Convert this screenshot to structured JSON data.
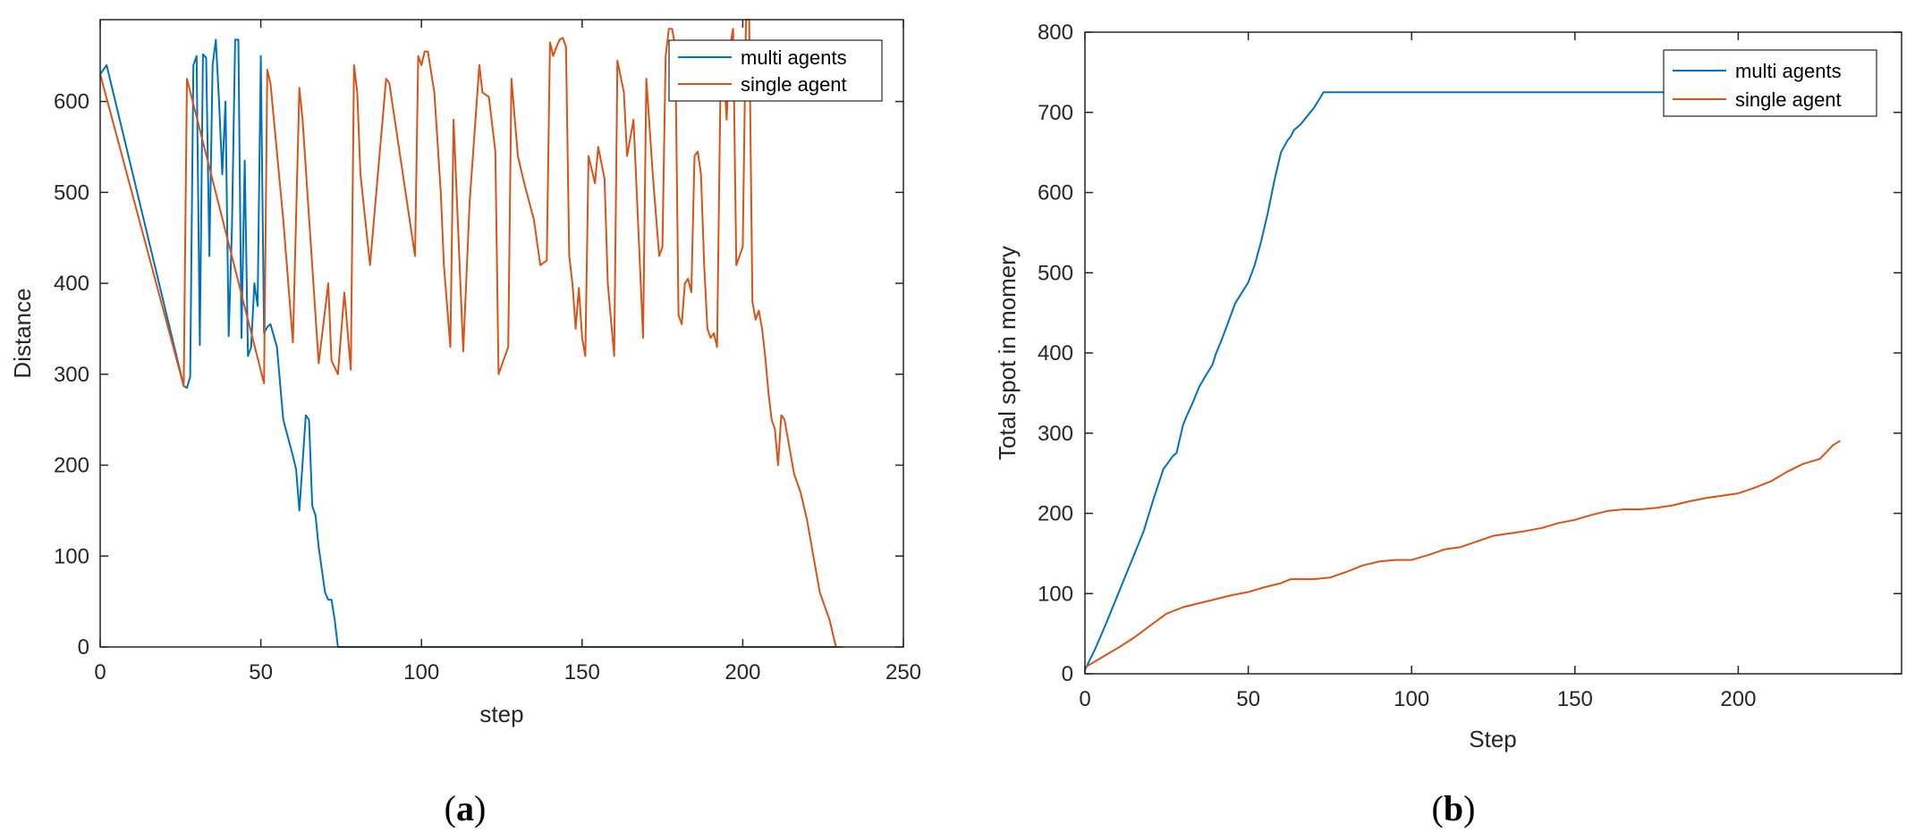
{
  "colors": {
    "multi": "#0072BD",
    "single": "#D95319"
  },
  "chart_data": [
    {
      "type": "line",
      "panel_label": "a",
      "xlabel": "step",
      "ylabel": "Distance",
      "xlim": [
        0,
        250
      ],
      "ylim": [
        0,
        690
      ],
      "xticks": [
        "0",
        "50",
        "100",
        "150",
        "200",
        "250"
      ],
      "yticks": [
        "0",
        "100",
        "200",
        "300",
        "400",
        "500",
        "600"
      ],
      "grid": false,
      "legend": "top-right",
      "series": [
        {
          "name": "multi agents",
          "x": [
            0,
            2,
            26,
            27,
            28,
            29,
            30,
            31,
            32,
            33,
            34,
            35,
            36,
            37,
            38,
            39,
            40,
            41,
            42,
            43,
            44,
            45,
            46,
            47,
            48,
            49,
            50,
            51,
            52,
            53,
            55,
            57,
            60,
            61,
            62,
            64,
            65,
            66,
            67,
            68,
            70,
            71,
            72,
            73,
            74,
            100,
            150,
            200,
            231
          ],
          "y": [
            630,
            640,
            287,
            285,
            297,
            640,
            650,
            332,
            652,
            648,
            430,
            640,
            668,
            600,
            520,
            600,
            342,
            460,
            668,
            668,
            340,
            535,
            320,
            330,
            400,
            375,
            650,
            345,
            352,
            355,
            330,
            250,
            210,
            195,
            150,
            255,
            250,
            155,
            145,
            110,
            60,
            52,
            52,
            30,
            0,
            0,
            0,
            0,
            0
          ]
        },
        {
          "name": "single agent",
          "x": [
            0,
            26,
            27,
            51,
            52,
            53,
            57,
            60,
            62,
            63,
            68,
            71,
            72,
            74,
            76,
            78,
            79,
            80,
            81,
            84,
            89,
            90,
            98,
            99,
            100,
            101,
            102,
            104,
            106,
            107,
            109,
            110,
            113,
            115,
            118,
            119,
            121,
            123,
            124,
            127,
            128,
            130,
            132,
            135,
            137,
            139,
            140,
            141,
            142,
            143,
            144,
            145,
            146,
            147,
            148,
            149,
            150,
            151,
            152,
            154,
            155,
            157,
            158,
            160,
            161,
            163,
            164,
            166,
            167,
            169,
            170,
            172,
            174,
            175,
            176,
            177,
            178,
            179,
            180,
            181,
            182,
            183,
            184,
            185,
            186,
            187,
            188,
            189,
            190,
            191,
            192,
            193,
            194,
            195,
            196,
            197,
            198,
            199,
            200,
            201,
            202,
            203,
            204,
            205,
            206,
            207,
            208,
            209,
            210,
            211,
            212,
            213,
            214,
            215,
            216,
            218,
            220,
            224,
            227,
            229,
            231
          ],
          "y": [
            630,
            287,
            625,
            290,
            635,
            620,
            470,
            335,
            615,
            580,
            312,
            400,
            315,
            300,
            390,
            305,
            640,
            610,
            520,
            420,
            625,
            620,
            430,
            650,
            640,
            655,
            655,
            610,
            500,
            420,
            330,
            580,
            325,
            490,
            640,
            610,
            605,
            545,
            300,
            330,
            625,
            540,
            510,
            470,
            420,
            425,
            665,
            650,
            660,
            668,
            670,
            660,
            430,
            400,
            350,
            395,
            340,
            320,
            540,
            510,
            550,
            515,
            400,
            320,
            645,
            610,
            540,
            580,
            500,
            340,
            625,
            520,
            430,
            440,
            650,
            680,
            680,
            660,
            365,
            355,
            400,
            405,
            390,
            540,
            545,
            520,
            420,
            350,
            340,
            345,
            330,
            600,
            640,
            580,
            660,
            680,
            420,
            430,
            440,
            690,
            690,
            380,
            360,
            370,
            350,
            320,
            280,
            250,
            240,
            200,
            255,
            250,
            230,
            210,
            190,
            170,
            140,
            60,
            30,
            0,
            0
          ]
        }
      ]
    },
    {
      "type": "line",
      "panel_label": "b",
      "xlabel": "Step",
      "ylabel": "Total spot in momery",
      "xlim": [
        0,
        250
      ],
      "ylim": [
        0,
        800
      ],
      "xticks": [
        "0",
        "50",
        "100",
        "150",
        "200"
      ],
      "yticks": [
        "0",
        "100",
        "200",
        "300",
        "400",
        "500",
        "600",
        "700",
        "800"
      ],
      "grid": false,
      "legend": "top-right",
      "series": [
        {
          "name": "multi agents",
          "x": [
            0,
            3,
            6,
            9,
            12,
            15,
            18,
            21,
            24,
            27,
            28,
            30,
            31,
            33,
            35,
            37,
            39,
            40,
            42,
            44,
            46,
            48,
            50,
            52,
            54,
            56,
            58,
            60,
            62,
            63,
            64,
            66,
            68,
            70,
            72,
            73,
            74,
            100,
            150,
            200,
            231
          ],
          "y": [
            5,
            30,
            58,
            88,
            118,
            148,
            178,
            218,
            255,
            272,
            275,
            310,
            320,
            338,
            358,
            372,
            385,
            398,
            418,
            440,
            462,
            475,
            488,
            510,
            540,
            575,
            615,
            650,
            665,
            670,
            678,
            685,
            695,
            705,
            718,
            725,
            725,
            725,
            725,
            725,
            725
          ]
        },
        {
          "name": "single agent",
          "x": [
            0,
            5,
            10,
            15,
            20,
            25,
            30,
            35,
            40,
            45,
            50,
            55,
            60,
            63,
            65,
            70,
            75,
            80,
            85,
            90,
            95,
            100,
            105,
            110,
            115,
            120,
            125,
            130,
            135,
            140,
            145,
            150,
            155,
            160,
            165,
            170,
            175,
            180,
            185,
            190,
            195,
            200,
            205,
            210,
            215,
            220,
            225,
            229,
            231
          ],
          "y": [
            8,
            20,
            32,
            45,
            60,
            75,
            83,
            88,
            93,
            98,
            102,
            108,
            113,
            118,
            118,
            118,
            120,
            127,
            135,
            140,
            142,
            142,
            148,
            155,
            158,
            165,
            172,
            175,
            178,
            182,
            188,
            192,
            198,
            203,
            205,
            205,
            207,
            210,
            215,
            219,
            222,
            225,
            232,
            240,
            252,
            262,
            268,
            285,
            290
          ]
        }
      ]
    }
  ]
}
